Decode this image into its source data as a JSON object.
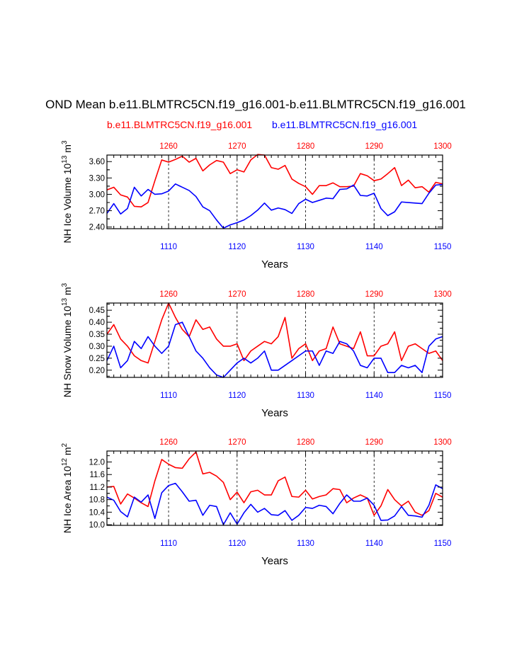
{
  "title": "OND Mean b.e11.BLMTRC5CN.f19_g16.001-b.e11.BLMTRC5CN.f19_g16.001",
  "subtitle_left": "b.e11.BLMTRC5CN.f19_g16.001",
  "subtitle_right": "b.e11.BLMTRC5CN.f19_g16.001",
  "colors": {
    "red": "#ff0000",
    "blue": "#0000ff",
    "axis": "#000000"
  },
  "chart_data": [
    {
      "type": "line",
      "ylabel_parts": [
        "NH Ice Volume 10",
        "13",
        " m",
        "3"
      ],
      "xlabel": "Years",
      "x_bottom": {
        "range": [
          1101,
          1150
        ],
        "ticks": [
          1110,
          1120,
          1130,
          1140,
          1150
        ]
      },
      "x_top": {
        "range": [
          1251,
          1300
        ],
        "ticks": [
          1260,
          1270,
          1280,
          1290,
          1300
        ]
      },
      "ylim": [
        2.37,
        3.72
      ],
      "yticks": [
        2.4,
        2.7,
        3.0,
        3.3,
        3.6
      ],
      "ytick_labels": [
        "2.40",
        "2.70",
        "3.00",
        "3.30",
        "3.60"
      ],
      "series": [
        {
          "color": "red",
          "axis": "top",
          "values": [
            3.08,
            3.13,
            2.99,
            2.95,
            2.78,
            2.77,
            2.85,
            3.25,
            3.63,
            3.59,
            3.64,
            3.7,
            3.59,
            3.66,
            3.43,
            3.54,
            3.62,
            3.59,
            3.38,
            3.45,
            3.41,
            3.63,
            3.73,
            3.72,
            3.49,
            3.46,
            3.53,
            3.28,
            3.2,
            3.14,
            3.0,
            3.16,
            3.16,
            3.21,
            3.14,
            3.14,
            3.15,
            3.38,
            3.34,
            3.25,
            3.28,
            3.38,
            3.49,
            3.16,
            3.26,
            3.12,
            3.14,
            3.04,
            3.22,
            3.19
          ]
        },
        {
          "color": "blue",
          "axis": "bottom",
          "values": [
            2.65,
            2.83,
            2.64,
            2.74,
            3.13,
            2.97,
            3.09,
            3.0,
            3.01,
            3.06,
            3.19,
            3.13,
            3.07,
            2.96,
            2.77,
            2.7,
            2.53,
            2.38,
            2.44,
            2.48,
            2.53,
            2.61,
            2.71,
            2.84,
            2.71,
            2.75,
            2.72,
            2.65,
            2.83,
            2.91,
            2.85,
            2.89,
            2.93,
            2.92,
            3.09,
            3.1,
            3.17,
            2.98,
            2.97,
            3.02,
            2.74,
            2.61,
            2.68,
            2.86,
            2.85,
            2.84,
            2.83,
            3.02,
            3.17,
            3.18
          ]
        }
      ]
    },
    {
      "type": "line",
      "ylabel_parts": [
        "NH Snow Volume 10",
        "13",
        " m",
        "3"
      ],
      "xlabel": "Years",
      "x_bottom": {
        "range": [
          1101,
          1150
        ],
        "ticks": [
          1110,
          1120,
          1130,
          1140,
          1150
        ]
      },
      "x_top": {
        "range": [
          1251,
          1300
        ],
        "ticks": [
          1260,
          1270,
          1280,
          1290,
          1300
        ]
      },
      "ylim": [
        0.17,
        0.48
      ],
      "yticks": [
        0.2,
        0.25,
        0.3,
        0.35,
        0.4,
        0.45
      ],
      "ytick_labels": [
        "0.20",
        "0.25",
        "0.30",
        "0.35",
        "0.40",
        "0.45"
      ],
      "series": [
        {
          "color": "red",
          "axis": "top",
          "values": [
            0.35,
            0.39,
            0.33,
            0.3,
            0.26,
            0.24,
            0.23,
            0.32,
            0.41,
            0.48,
            0.42,
            0.37,
            0.34,
            0.41,
            0.37,
            0.38,
            0.33,
            0.3,
            0.3,
            0.31,
            0.24,
            0.28,
            0.3,
            0.32,
            0.31,
            0.34,
            0.42,
            0.25,
            0.29,
            0.31,
            0.24,
            0.28,
            0.29,
            0.38,
            0.31,
            0.3,
            0.29,
            0.36,
            0.26,
            0.26,
            0.3,
            0.31,
            0.36,
            0.24,
            0.3,
            0.31,
            0.29,
            0.27,
            0.28,
            0.24
          ]
        },
        {
          "color": "blue",
          "axis": "bottom",
          "values": [
            0.24,
            0.3,
            0.21,
            0.24,
            0.32,
            0.29,
            0.34,
            0.3,
            0.27,
            0.3,
            0.39,
            0.4,
            0.34,
            0.28,
            0.25,
            0.21,
            0.18,
            0.17,
            0.2,
            0.23,
            0.25,
            0.23,
            0.25,
            0.28,
            0.2,
            0.2,
            0.22,
            0.24,
            0.26,
            0.28,
            0.28,
            0.22,
            0.28,
            0.27,
            0.32,
            0.31,
            0.28,
            0.22,
            0.21,
            0.25,
            0.25,
            0.19,
            0.19,
            0.22,
            0.21,
            0.22,
            0.19,
            0.3,
            0.33,
            0.34
          ]
        }
      ]
    },
    {
      "type": "line",
      "ylabel_parts": [
        "NH Ice Area 10",
        "12",
        " m",
        "2"
      ],
      "xlabel": "Years",
      "x_bottom": {
        "range": [
          1101,
          1150
        ],
        "ticks": [
          1110,
          1120,
          1130,
          1140,
          1150
        ]
      },
      "x_top": {
        "range": [
          1251,
          1300
        ],
        "ticks": [
          1260,
          1270,
          1280,
          1290,
          1300
        ]
      },
      "ylim": [
        9.98,
        12.35
      ],
      "yticks": [
        10.0,
        10.4,
        10.8,
        11.2,
        11.6,
        12.0
      ],
      "ytick_labels": [
        "10.0",
        "10.4",
        "10.8",
        "11.2",
        "11.6",
        "12.0"
      ],
      "series": [
        {
          "color": "red",
          "axis": "top",
          "values": [
            11.2,
            11.22,
            10.66,
            10.98,
            10.85,
            10.7,
            10.58,
            11.4,
            12.08,
            11.93,
            11.82,
            11.8,
            12.1,
            12.32,
            11.62,
            11.67,
            11.55,
            11.35,
            10.8,
            11.04,
            10.7,
            11.05,
            11.1,
            10.95,
            10.95,
            11.4,
            11.52,
            10.9,
            10.88,
            11.1,
            10.82,
            10.9,
            10.95,
            11.15,
            11.12,
            10.7,
            10.85,
            10.95,
            10.85,
            10.3,
            10.6,
            11.12,
            10.8,
            10.6,
            10.75,
            10.4,
            10.3,
            10.45,
            11.0,
            10.88
          ]
        },
        {
          "color": "blue",
          "axis": "bottom",
          "values": [
            10.88,
            10.78,
            10.42,
            10.25,
            10.88,
            10.72,
            10.95,
            10.2,
            11.02,
            11.25,
            11.32,
            11.05,
            10.75,
            10.78,
            10.3,
            10.62,
            10.58,
            10.0,
            10.38,
            10.02,
            10.38,
            10.65,
            10.4,
            10.52,
            10.32,
            10.3,
            10.45,
            10.14,
            10.3,
            10.55,
            10.52,
            10.62,
            10.58,
            10.35,
            10.68,
            10.95,
            10.75,
            10.75,
            10.85,
            10.62,
            10.14,
            10.15,
            10.28,
            10.58,
            10.3,
            10.28,
            10.24,
            10.62,
            11.27,
            11.15
          ]
        }
      ]
    }
  ]
}
